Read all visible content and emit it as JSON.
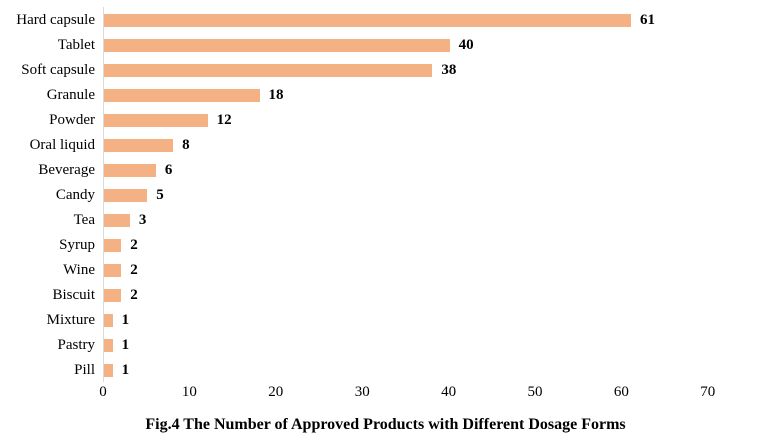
{
  "title": "Fig.4 The Number of Approved Products with Different Dosage Forms",
  "colors": {
    "bar": "#F4B183",
    "axis_line": "#D9D9D9",
    "text": "#000000",
    "background": "#FFFFFF"
  },
  "chart_data": {
    "type": "bar",
    "orientation": "horizontal",
    "title": "Fig.4 The Number of Approved Products with Different Dosage Forms",
    "categories": [
      "Hard capsule",
      "Tablet",
      "Soft capsule",
      "Granule",
      "Powder",
      "Oral liquid",
      "Beverage",
      "Candy",
      "Tea",
      "Syrup",
      "Wine",
      "Biscuit",
      "Mixture",
      "Pastry",
      "Pill"
    ],
    "values": [
      61,
      40,
      38,
      18,
      12,
      8,
      6,
      5,
      3,
      2,
      2,
      2,
      1,
      1,
      1
    ],
    "data_labels": [
      61,
      40,
      38,
      18,
      12,
      8,
      6,
      5,
      3,
      2,
      2,
      2,
      1,
      1,
      1
    ],
    "xlabel": "",
    "ylabel": "",
    "xlim": [
      0,
      70
    ],
    "x_ticks": [
      0,
      10,
      20,
      30,
      40,
      50,
      60,
      70
    ],
    "grid": false,
    "legend": "none"
  }
}
